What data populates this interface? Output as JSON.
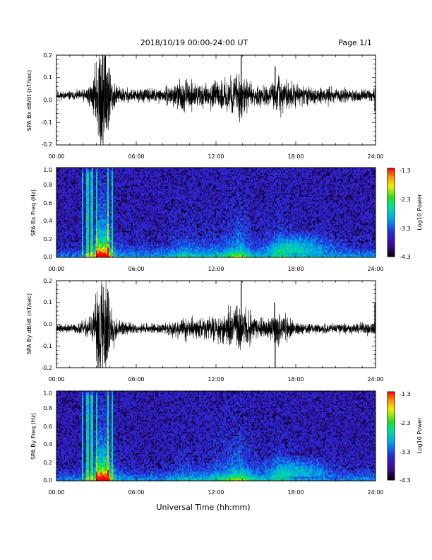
{
  "header": {
    "date_title": "2018/10/19   00:00-24:00 UT",
    "page_label": "Page 1/1"
  },
  "xaxis_label": "Universal Time (hh:mm)",
  "chart_data": [
    {
      "type": "line",
      "ylabel": "SPA Bx dB/dt (nT/sec)",
      "xlim": [
        0,
        24
      ],
      "ylim": [
        -0.2,
        0.2
      ],
      "xticks": [
        "00:00",
        "06:00",
        "12:00",
        "18:00",
        "24:00"
      ],
      "yticks": [
        "-0.2",
        "-0.1",
        "0.0",
        "0.1",
        "0.2"
      ],
      "offset": 0.02,
      "envelope": [
        {
          "x": 0.0,
          "amp": 0.012
        },
        {
          "x": 1.5,
          "amp": 0.014
        },
        {
          "x": 2.2,
          "amp": 0.02
        },
        {
          "x": 2.8,
          "amp": 0.05
        },
        {
          "x": 3.3,
          "amp": 0.2
        },
        {
          "x": 3.7,
          "amp": 0.22
        },
        {
          "x": 4.1,
          "amp": 0.06
        },
        {
          "x": 4.6,
          "amp": 0.025
        },
        {
          "x": 6.0,
          "amp": 0.02
        },
        {
          "x": 8.0,
          "amp": 0.02
        },
        {
          "x": 9.5,
          "amp": 0.045
        },
        {
          "x": 11.0,
          "amp": 0.035
        },
        {
          "x": 12.5,
          "amp": 0.04
        },
        {
          "x": 13.8,
          "amp": 0.075
        },
        {
          "x": 14.8,
          "amp": 0.03
        },
        {
          "x": 16.0,
          "amp": 0.03
        },
        {
          "x": 16.8,
          "amp": 0.055
        },
        {
          "x": 18.0,
          "amp": 0.03
        },
        {
          "x": 20.0,
          "amp": 0.025
        },
        {
          "x": 22.0,
          "amp": 0.02
        },
        {
          "x": 24.0,
          "amp": 0.02
        }
      ],
      "spikes": [
        {
          "x": 13.9,
          "y": 0.2
        },
        {
          "x": 16.45,
          "y": 0.15
        },
        {
          "x": 23.95,
          "y": -0.05
        }
      ]
    },
    {
      "type": "heatmap",
      "ylabel": "SPA Bx Freq (Hz)",
      "xlim": [
        0,
        24
      ],
      "ylim": [
        0.0,
        1.0
      ],
      "xticks": [
        "00:00",
        "06:00",
        "12:00",
        "18:00",
        "24:00"
      ],
      "yticks": [
        "0.0",
        "0.2",
        "0.4",
        "0.6",
        "0.8",
        "1.0"
      ],
      "colorbar": {
        "label": "Log10 Power",
        "ticks": [
          "-1.3",
          "-2.3",
          "-3.3",
          "-4.3"
        ],
        "range": [
          -4.3,
          -1.3
        ]
      }
    },
    {
      "type": "line",
      "ylabel": "SPA By dB/dt (nT/sec)",
      "xlim": [
        0,
        24
      ],
      "ylim": [
        -0.2,
        0.2
      ],
      "xticks": [
        "00:00",
        "06:00",
        "12:00",
        "18:00",
        "24:00"
      ],
      "yticks": [
        "-0.2",
        "-0.1",
        "0.0",
        "0.1",
        "0.2"
      ],
      "offset": -0.02,
      "envelope": [
        {
          "x": 0.0,
          "amp": 0.012
        },
        {
          "x": 1.5,
          "amp": 0.015
        },
        {
          "x": 2.2,
          "amp": 0.025
        },
        {
          "x": 2.8,
          "amp": 0.05
        },
        {
          "x": 3.3,
          "amp": 0.2
        },
        {
          "x": 3.7,
          "amp": 0.22
        },
        {
          "x": 4.1,
          "amp": 0.07
        },
        {
          "x": 4.6,
          "amp": 0.025
        },
        {
          "x": 6.0,
          "amp": 0.015
        },
        {
          "x": 8.0,
          "amp": 0.015
        },
        {
          "x": 9.5,
          "amp": 0.035
        },
        {
          "x": 11.0,
          "amp": 0.03
        },
        {
          "x": 12.5,
          "amp": 0.05
        },
        {
          "x": 13.8,
          "amp": 0.08
        },
        {
          "x": 14.8,
          "amp": 0.04
        },
        {
          "x": 16.0,
          "amp": 0.03
        },
        {
          "x": 16.8,
          "amp": 0.05
        },
        {
          "x": 18.0,
          "amp": 0.02
        },
        {
          "x": 20.0,
          "amp": 0.015
        },
        {
          "x": 22.0,
          "amp": 0.015
        },
        {
          "x": 24.0,
          "amp": 0.02
        }
      ],
      "spikes": [
        {
          "x": 13.9,
          "y": 0.2
        },
        {
          "x": 16.45,
          "y": -0.2
        },
        {
          "x": 16.4,
          "y": 0.1
        },
        {
          "x": 23.95,
          "y": 0.1
        }
      ]
    },
    {
      "type": "heatmap",
      "ylabel": "SPA By Freq (Hz)",
      "xlim": [
        0,
        24
      ],
      "ylim": [
        0.0,
        1.0
      ],
      "xticks": [
        "00:00",
        "06:00",
        "12:00",
        "18:00",
        "24:00"
      ],
      "yticks": [
        "0.0",
        "0.2",
        "0.4",
        "0.6",
        "0.8",
        "1.0"
      ],
      "colorbar": {
        "label": "Log10 Power",
        "ticks": [
          "-1.3",
          "-2.3",
          "-3.3",
          "-4.3"
        ],
        "range": [
          -4.3,
          -1.3
        ]
      }
    }
  ]
}
